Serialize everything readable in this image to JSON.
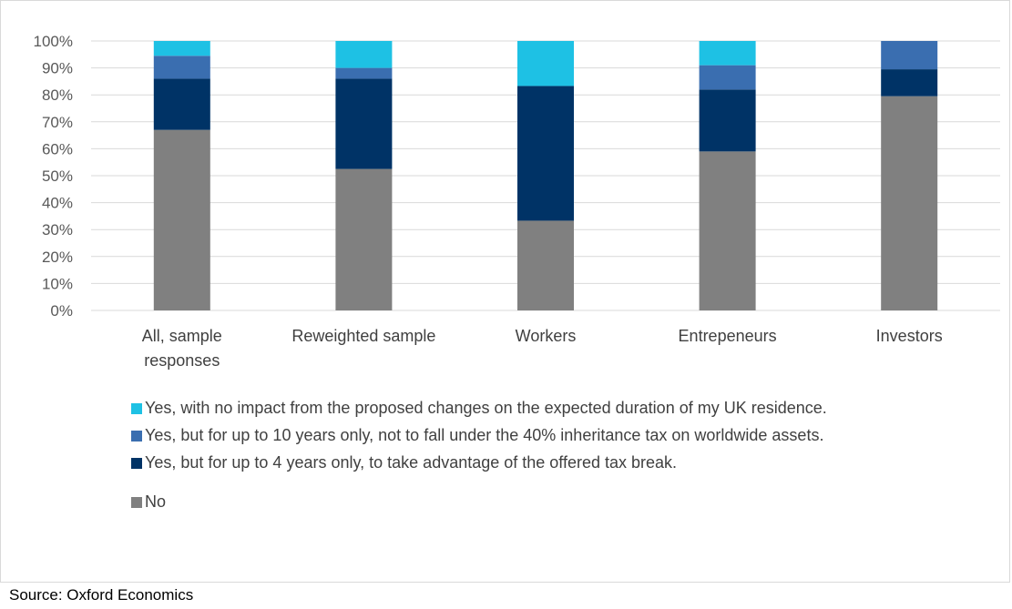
{
  "chart_data": {
    "type": "bar",
    "stacked": true,
    "categories": [
      [
        "All, sample",
        "responses"
      ],
      [
        "Reweighted sample"
      ],
      [
        "Workers"
      ],
      [
        "Entrepeneurs"
      ],
      [
        "Investors"
      ]
    ],
    "series": [
      {
        "name": "No",
        "color": "#808080",
        "values": [
          67,
          52.5,
          33.3,
          59,
          79.5
        ]
      },
      {
        "name": "Yes, but for up to 4 years only, to take advantage of the offered tax break.",
        "color": "#003366",
        "values": [
          19,
          33.5,
          50,
          23,
          10
        ]
      },
      {
        "name": "Yes, but for up to 10 years only, not to fall under the 40% inheritance tax on worldwide assets.",
        "color": "#3a6eb0",
        "values": [
          8.5,
          4,
          0,
          9,
          10.5
        ]
      },
      {
        "name": "Yes, with no impact from the proposed changes on the expected duration of my UK residence.",
        "color": "#1ec1e4",
        "values": [
          5.5,
          10,
          16.7,
          9,
          0
        ]
      }
    ],
    "ylim": [
      0,
      100
    ],
    "yticks": [
      "0%",
      "10%",
      "20%",
      "30%",
      "40%",
      "50%",
      "60%",
      "70%",
      "80%",
      "90%",
      "100%"
    ],
    "grid": true,
    "legend_position": "bottom"
  },
  "legend": [
    {
      "label": "Yes, with no impact from the proposed changes on the expected duration of my UK residence.",
      "color": "#1ec1e4"
    },
    {
      "label": "Yes, but for up to 10 years only, not to fall under the 40% inheritance tax on worldwide assets.",
      "color": "#3a6eb0"
    },
    {
      "label": "Yes, but for up to 4 years only, to take advantage of the offered tax break.",
      "color": "#003366"
    },
    {
      "label": "No",
      "color": "#808080"
    }
  ],
  "source": "Source: Oxford Economics"
}
